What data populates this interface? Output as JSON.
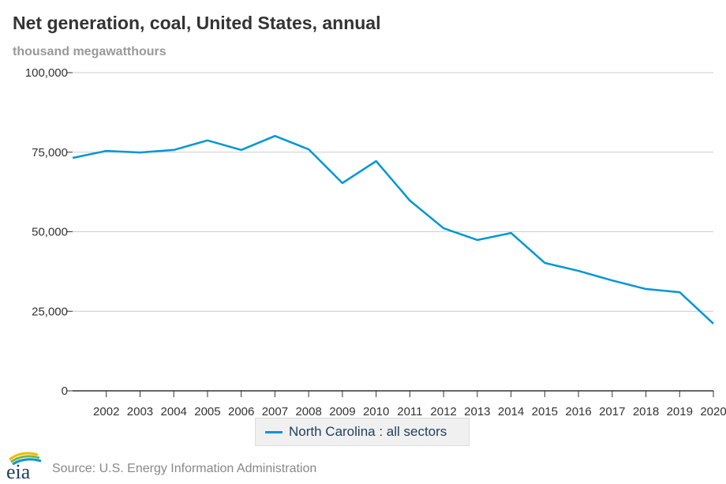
{
  "header": {
    "title": "Net generation, coal, United States, annual",
    "units": "thousand megawatthours"
  },
  "chart_data": {
    "type": "line",
    "title": "Net generation, coal, United States, annual",
    "ylabel": "thousand megawatthours",
    "xlabel": "",
    "x": [
      2001,
      2002,
      2003,
      2004,
      2005,
      2006,
      2007,
      2008,
      2009,
      2010,
      2011,
      2012,
      2013,
      2014,
      2015,
      2016,
      2017,
      2018,
      2019,
      2020
    ],
    "x_tick_labels": [
      "2002",
      "2003",
      "2004",
      "2005",
      "2006",
      "2007",
      "2008",
      "2009",
      "2010",
      "2011",
      "2012",
      "2013",
      "2014",
      "2015",
      "2016",
      "2017",
      "2018",
      "2019",
      "2020"
    ],
    "y_ticks": [
      0,
      25000,
      50000,
      75000,
      100000
    ],
    "y_tick_labels": [
      "0",
      "25,000",
      "50,000",
      "75,000",
      "100,000"
    ],
    "ylim": [
      0,
      100000
    ],
    "grid": true,
    "legend_position": "bottom-center",
    "series": [
      {
        "name": "North Carolina : all sectors",
        "color": "#0096d7",
        "values": [
          73200,
          75400,
          74900,
          75700,
          78700,
          75700,
          80100,
          75900,
          65300,
          72200,
          59800,
          51100,
          47400,
          49600,
          40200,
          37700,
          34700,
          32000,
          31000,
          21100
        ]
      }
    ]
  },
  "legend": {
    "label": "North Carolina : all sectors"
  },
  "footer": {
    "source": "Source: U.S. Energy Information Administration",
    "logo_text": "eia"
  }
}
